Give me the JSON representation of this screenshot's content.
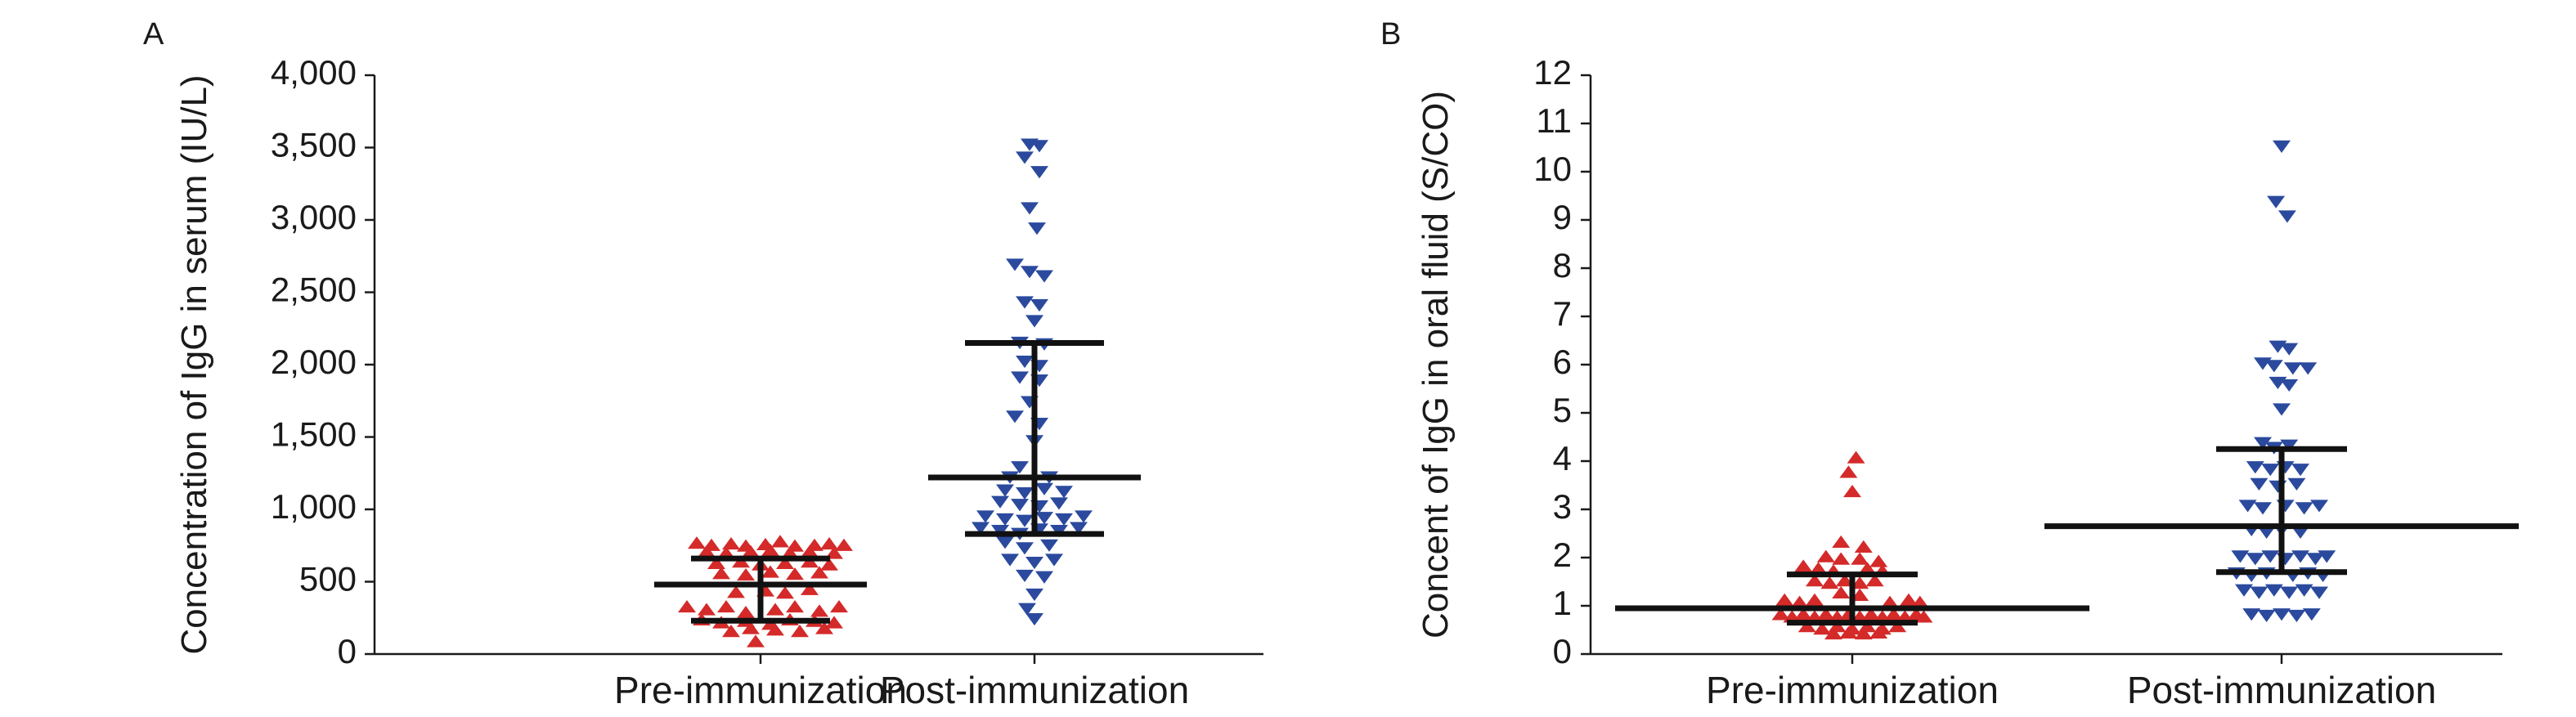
{
  "chart_data": [
    {
      "panel_label": "A",
      "type": "scatter",
      "ylabel": "Concentration of IgG in serum (IU/L)",
      "ylim": [
        0,
        4000
      ],
      "yticks": [
        0,
        500,
        1000,
        1500,
        2000,
        2500,
        3000,
        3500,
        4000
      ],
      "ytick_labels": [
        "0",
        "500",
        "1,000",
        "1,500",
        "2,000",
        "2,500",
        "3,000",
        "3,500",
        "4,000"
      ],
      "categories": [
        "Pre-immunization",
        "Post-immunization"
      ],
      "groups": [
        {
          "category": "Pre-immunization",
          "marker": "triangle-up",
          "color": "#d42a2a",
          "median": 480,
          "q1": 230,
          "q3": 660,
          "points": [
            {
              "x": -0.26,
              "y": 760
            },
            {
              "x": -0.2,
              "y": 745
            },
            {
              "x": -0.12,
              "y": 755
            },
            {
              "x": -0.06,
              "y": 740
            },
            {
              "x": 0.02,
              "y": 750
            },
            {
              "x": 0.08,
              "y": 770
            },
            {
              "x": 0.14,
              "y": 740
            },
            {
              "x": 0.22,
              "y": 745
            },
            {
              "x": 0.28,
              "y": 755
            },
            {
              "x": 0.34,
              "y": 745
            },
            {
              "x": -0.22,
              "y": 700
            },
            {
              "x": -0.14,
              "y": 690
            },
            {
              "x": -0.04,
              "y": 700
            },
            {
              "x": 0.04,
              "y": 710
            },
            {
              "x": 0.12,
              "y": 690
            },
            {
              "x": 0.2,
              "y": 700
            },
            {
              "x": 0.3,
              "y": 690
            },
            {
              "x": -0.18,
              "y": 620
            },
            {
              "x": -0.08,
              "y": 630
            },
            {
              "x": 0.0,
              "y": 610
            },
            {
              "x": 0.1,
              "y": 620
            },
            {
              "x": 0.2,
              "y": 630
            },
            {
              "x": 0.28,
              "y": 610
            },
            {
              "x": -0.16,
              "y": 550
            },
            {
              "x": -0.06,
              "y": 540
            },
            {
              "x": 0.04,
              "y": 560
            },
            {
              "x": 0.14,
              "y": 545
            },
            {
              "x": 0.24,
              "y": 555
            },
            {
              "x": -0.1,
              "y": 420
            },
            {
              "x": 0.02,
              "y": 430
            },
            {
              "x": 0.1,
              "y": 415
            },
            {
              "x": 0.2,
              "y": 440
            },
            {
              "x": -0.3,
              "y": 320
            },
            {
              "x": -0.22,
              "y": 300
            },
            {
              "x": -0.14,
              "y": 320
            },
            {
              "x": -0.06,
              "y": 280
            },
            {
              "x": 0.06,
              "y": 300
            },
            {
              "x": 0.14,
              "y": 320
            },
            {
              "x": 0.24,
              "y": 290
            },
            {
              "x": 0.32,
              "y": 320
            },
            {
              "x": -0.24,
              "y": 230
            },
            {
              "x": -0.16,
              "y": 210
            },
            {
              "x": -0.06,
              "y": 220
            },
            {
              "x": 0.04,
              "y": 200
            },
            {
              "x": 0.12,
              "y": 230
            },
            {
              "x": 0.22,
              "y": 220
            },
            {
              "x": 0.3,
              "y": 210
            },
            {
              "x": -0.12,
              "y": 150
            },
            {
              "x": -0.04,
              "y": 170
            },
            {
              "x": 0.06,
              "y": 160
            },
            {
              "x": 0.16,
              "y": 150
            },
            {
              "x": 0.26,
              "y": 170
            },
            {
              "x": -0.02,
              "y": 80
            }
          ]
        },
        {
          "category": "Post-immunization",
          "marker": "triangle-down",
          "color": "#2b4a9e",
          "median": 1220,
          "q1": 830,
          "q3": 2150,
          "points": [
            {
              "x": -0.02,
              "y": 3530
            },
            {
              "x": 0.02,
              "y": 3520
            },
            {
              "x": -0.04,
              "y": 3440
            },
            {
              "x": 0.02,
              "y": 3340
            },
            {
              "x": -0.02,
              "y": 3090
            },
            {
              "x": 0.01,
              "y": 2950
            },
            {
              "x": -0.08,
              "y": 2700
            },
            {
              "x": -0.02,
              "y": 2650
            },
            {
              "x": 0.04,
              "y": 2620
            },
            {
              "x": -0.04,
              "y": 2440
            },
            {
              "x": 0.02,
              "y": 2420
            },
            {
              "x": 0.0,
              "y": 2310
            },
            {
              "x": -0.06,
              "y": 2160
            },
            {
              "x": 0.04,
              "y": 2150
            },
            {
              "x": -0.04,
              "y": 2030
            },
            {
              "x": 0.02,
              "y": 2000
            },
            {
              "x": -0.06,
              "y": 1920
            },
            {
              "x": 0.02,
              "y": 1900
            },
            {
              "x": -0.02,
              "y": 1750
            },
            {
              "x": -0.08,
              "y": 1650
            },
            {
              "x": 0.02,
              "y": 1600
            },
            {
              "x": 0.0,
              "y": 1480
            },
            {
              "x": -0.06,
              "y": 1300
            },
            {
              "x": -0.1,
              "y": 1230
            },
            {
              "x": 0.06,
              "y": 1230
            },
            {
              "x": -0.12,
              "y": 1140
            },
            {
              "x": -0.04,
              "y": 1120
            },
            {
              "x": 0.04,
              "y": 1150
            },
            {
              "x": 0.12,
              "y": 1130
            },
            {
              "x": -0.14,
              "y": 1060
            },
            {
              "x": -0.06,
              "y": 1040
            },
            {
              "x": 0.02,
              "y": 1030
            },
            {
              "x": 0.1,
              "y": 1050
            },
            {
              "x": -0.2,
              "y": 960
            },
            {
              "x": -0.12,
              "y": 940
            },
            {
              "x": -0.04,
              "y": 930
            },
            {
              "x": 0.04,
              "y": 950
            },
            {
              "x": 0.12,
              "y": 940
            },
            {
              "x": 0.2,
              "y": 960
            },
            {
              "x": -0.22,
              "y": 880
            },
            {
              "x": -0.14,
              "y": 860
            },
            {
              "x": -0.06,
              "y": 840
            },
            {
              "x": 0.02,
              "y": 870
            },
            {
              "x": 0.1,
              "y": 860
            },
            {
              "x": 0.18,
              "y": 880
            },
            {
              "x": -0.12,
              "y": 780
            },
            {
              "x": -0.04,
              "y": 740
            },
            {
              "x": 0.06,
              "y": 760
            },
            {
              "x": -0.1,
              "y": 660
            },
            {
              "x": 0.0,
              "y": 640
            },
            {
              "x": 0.08,
              "y": 660
            },
            {
              "x": -0.04,
              "y": 550
            },
            {
              "x": 0.04,
              "y": 540
            },
            {
              "x": 0.0,
              "y": 420
            },
            {
              "x": -0.03,
              "y": 320
            },
            {
              "x": 0.0,
              "y": 250
            }
          ]
        }
      ]
    },
    {
      "panel_label": "B",
      "type": "scatter",
      "ylabel": "Concent of IgG in oral fluid (S/CO)",
      "ylim": [
        0,
        12
      ],
      "yticks": [
        0,
        1,
        2,
        3,
        4,
        5,
        6,
        7,
        8,
        9,
        10,
        11,
        12
      ],
      "ytick_labels": [
        "0",
        "1",
        "2",
        "3",
        "4",
        "5",
        "6",
        "7",
        "8",
        "9",
        "10",
        "11",
        "12"
      ],
      "categories": [
        "Pre-immunization",
        "Post-immunization"
      ],
      "groups": [
        {
          "category": "Pre-immunization",
          "marker": "triangle-up",
          "color": "#d42a2a",
          "median": 0.95,
          "q1": 0.65,
          "q3": 1.65,
          "points": [
            {
              "x": 0.02,
              "y": 4.05
            },
            {
              "x": -0.02,
              "y": 3.75
            },
            {
              "x": 0.0,
              "y": 3.35
            },
            {
              "x": -0.06,
              "y": 2.3
            },
            {
              "x": 0.06,
              "y": 2.2
            },
            {
              "x": -0.14,
              "y": 2.0
            },
            {
              "x": -0.06,
              "y": 1.95
            },
            {
              "x": 0.04,
              "y": 1.95
            },
            {
              "x": 0.14,
              "y": 1.9
            },
            {
              "x": -0.26,
              "y": 1.8
            },
            {
              "x": -0.18,
              "y": 1.75
            },
            {
              "x": -0.1,
              "y": 1.7
            },
            {
              "x": 0.08,
              "y": 1.75
            },
            {
              "x": 0.16,
              "y": 1.7
            },
            {
              "x": -0.2,
              "y": 1.5
            },
            {
              "x": -0.12,
              "y": 1.45
            },
            {
              "x": -0.04,
              "y": 1.5
            },
            {
              "x": 0.04,
              "y": 1.45
            },
            {
              "x": 0.12,
              "y": 1.5
            },
            {
              "x": -0.06,
              "y": 1.25
            },
            {
              "x": 0.04,
              "y": 1.2
            },
            {
              "x": -0.36,
              "y": 1.1
            },
            {
              "x": -0.28,
              "y": 1.05
            },
            {
              "x": -0.2,
              "y": 1.1
            },
            {
              "x": 0.2,
              "y": 1.05
            },
            {
              "x": 0.3,
              "y": 1.1
            },
            {
              "x": 0.36,
              "y": 1.05
            },
            {
              "x": -0.38,
              "y": 0.8
            },
            {
              "x": -0.32,
              "y": 0.75
            },
            {
              "x": -0.26,
              "y": 0.8
            },
            {
              "x": -0.2,
              "y": 0.75
            },
            {
              "x": -0.14,
              "y": 0.8
            },
            {
              "x": -0.08,
              "y": 0.75
            },
            {
              "x": -0.02,
              "y": 0.8
            },
            {
              "x": 0.04,
              "y": 0.75
            },
            {
              "x": 0.1,
              "y": 0.8
            },
            {
              "x": 0.16,
              "y": 0.75
            },
            {
              "x": 0.22,
              "y": 0.8
            },
            {
              "x": 0.28,
              "y": 0.75
            },
            {
              "x": 0.34,
              "y": 0.8
            },
            {
              "x": 0.38,
              "y": 0.75
            },
            {
              "x": -0.24,
              "y": 0.55
            },
            {
              "x": -0.16,
              "y": 0.5
            },
            {
              "x": -0.08,
              "y": 0.55
            },
            {
              "x": 0.0,
              "y": 0.5
            },
            {
              "x": 0.08,
              "y": 0.55
            },
            {
              "x": 0.16,
              "y": 0.5
            },
            {
              "x": 0.24,
              "y": 0.55
            },
            {
              "x": -0.1,
              "y": 0.4
            },
            {
              "x": -0.02,
              "y": 0.42
            },
            {
              "x": 0.06,
              "y": 0.4
            },
            {
              "x": 0.14,
              "y": 0.42
            }
          ]
        },
        {
          "category": "Post-immunization",
          "marker": "triangle-down",
          "color": "#2b4a9e",
          "median": 2.65,
          "q1": 1.7,
          "q3": 4.25,
          "points": [
            {
              "x": 0.0,
              "y": 10.55
            },
            {
              "x": -0.03,
              "y": 9.4
            },
            {
              "x": 0.03,
              "y": 9.1
            },
            {
              "x": -0.02,
              "y": 6.4
            },
            {
              "x": 0.04,
              "y": 6.35
            },
            {
              "x": -0.1,
              "y": 6.05
            },
            {
              "x": -0.04,
              "y": 6.0
            },
            {
              "x": 0.06,
              "y": 5.95
            },
            {
              "x": 0.14,
              "y": 5.95
            },
            {
              "x": -0.02,
              "y": 5.65
            },
            {
              "x": 0.04,
              "y": 5.6
            },
            {
              "x": 0.0,
              "y": 5.1
            },
            {
              "x": -0.1,
              "y": 4.4
            },
            {
              "x": -0.04,
              "y": 4.3
            },
            {
              "x": 0.04,
              "y": 4.35
            },
            {
              "x": -0.14,
              "y": 3.9
            },
            {
              "x": -0.06,
              "y": 3.85
            },
            {
              "x": 0.02,
              "y": 3.9
            },
            {
              "x": 0.1,
              "y": 3.85
            },
            {
              "x": -0.12,
              "y": 3.55
            },
            {
              "x": -0.02,
              "y": 3.5
            },
            {
              "x": 0.08,
              "y": 3.55
            },
            {
              "x": -0.18,
              "y": 3.1
            },
            {
              "x": -0.1,
              "y": 3.05
            },
            {
              "x": 0.02,
              "y": 3.1
            },
            {
              "x": 0.12,
              "y": 3.05
            },
            {
              "x": 0.2,
              "y": 3.1
            },
            {
              "x": -0.16,
              "y": 2.6
            },
            {
              "x": -0.08,
              "y": 2.55
            },
            {
              "x": 0.0,
              "y": 2.6
            },
            {
              "x": 0.1,
              "y": 2.55
            },
            {
              "x": -0.22,
              "y": 2.05
            },
            {
              "x": -0.14,
              "y": 2.0
            },
            {
              "x": -0.06,
              "y": 2.05
            },
            {
              "x": 0.02,
              "y": 2.0
            },
            {
              "x": 0.1,
              "y": 2.05
            },
            {
              "x": 0.18,
              "y": 2.0
            },
            {
              "x": 0.24,
              "y": 2.05
            },
            {
              "x": -0.24,
              "y": 1.7
            },
            {
              "x": -0.16,
              "y": 1.65
            },
            {
              "x": -0.08,
              "y": 1.7
            },
            {
              "x": 0.06,
              "y": 1.65
            },
            {
              "x": 0.14,
              "y": 1.7
            },
            {
              "x": 0.22,
              "y": 1.65
            },
            {
              "x": -0.2,
              "y": 1.35
            },
            {
              "x": -0.12,
              "y": 1.3
            },
            {
              "x": -0.04,
              "y": 1.35
            },
            {
              "x": 0.04,
              "y": 1.3
            },
            {
              "x": 0.12,
              "y": 1.35
            },
            {
              "x": 0.2,
              "y": 1.3
            },
            {
              "x": -0.16,
              "y": 0.85
            },
            {
              "x": -0.08,
              "y": 0.82
            },
            {
              "x": 0.0,
              "y": 0.85
            },
            {
              "x": 0.08,
              "y": 0.82
            },
            {
              "x": 0.16,
              "y": 0.85
            }
          ]
        }
      ]
    }
  ]
}
